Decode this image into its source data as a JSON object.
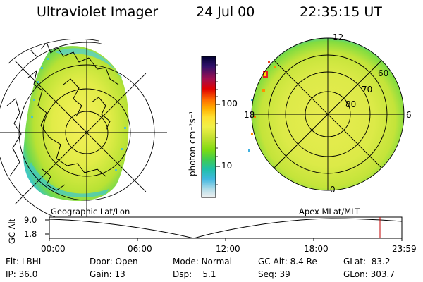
{
  "header": {
    "title": "Ultraviolet Imager",
    "date": "24 Jul 00",
    "time": "22:35:15 UT"
  },
  "colorbar": {
    "axis_label": "photon cm⁻²s⁻¹",
    "ticks": [
      "100",
      "10"
    ],
    "colors": [
      "#000040",
      "#3a0a6a",
      "#a01050",
      "#e00000",
      "#ff6000",
      "#ffa000",
      "#ffd020",
      "#f0f040",
      "#c8e630",
      "#8ce000",
      "#40d040",
      "#20c8a0",
      "#30b8e0",
      "#a0d8e8",
      "#e8e8e8"
    ]
  },
  "left_map": {
    "caption": "Geographic Lat/Lon"
  },
  "right_map": {
    "caption": "Apex MLat/MLT",
    "mlt_labels": {
      "top": "12",
      "left": "18",
      "right": "6",
      "bottom": "0"
    },
    "lat_labels": [
      "60",
      "70",
      "80"
    ]
  },
  "timeline": {
    "y_label": "GC Alt",
    "y_ticks": [
      "9.0",
      "1.8"
    ],
    "x_ticks": [
      "00:00",
      "06:00",
      "12:00",
      "18:00",
      "23:59"
    ],
    "marker_color": "#c00000"
  },
  "info": {
    "row1": [
      {
        "key": "Flt:",
        "value": "LBHL"
      },
      {
        "key": "Door:",
        "value": "Open"
      },
      {
        "key": "Mode:",
        "value": "Normal"
      },
      {
        "key": "GC Alt:",
        "value": "8.4 Re"
      },
      {
        "key": "GLat:",
        "value": "83.2"
      }
    ],
    "row2": [
      {
        "key": "IP:",
        "value": "36.0"
      },
      {
        "key": "Gain:",
        "value": "13"
      },
      {
        "key": "Dsp:",
        "value": "5.1"
      },
      {
        "key": "Seq:",
        "value": "39"
      },
      {
        "key": "GLon:",
        "value": "303.7"
      }
    ]
  }
}
